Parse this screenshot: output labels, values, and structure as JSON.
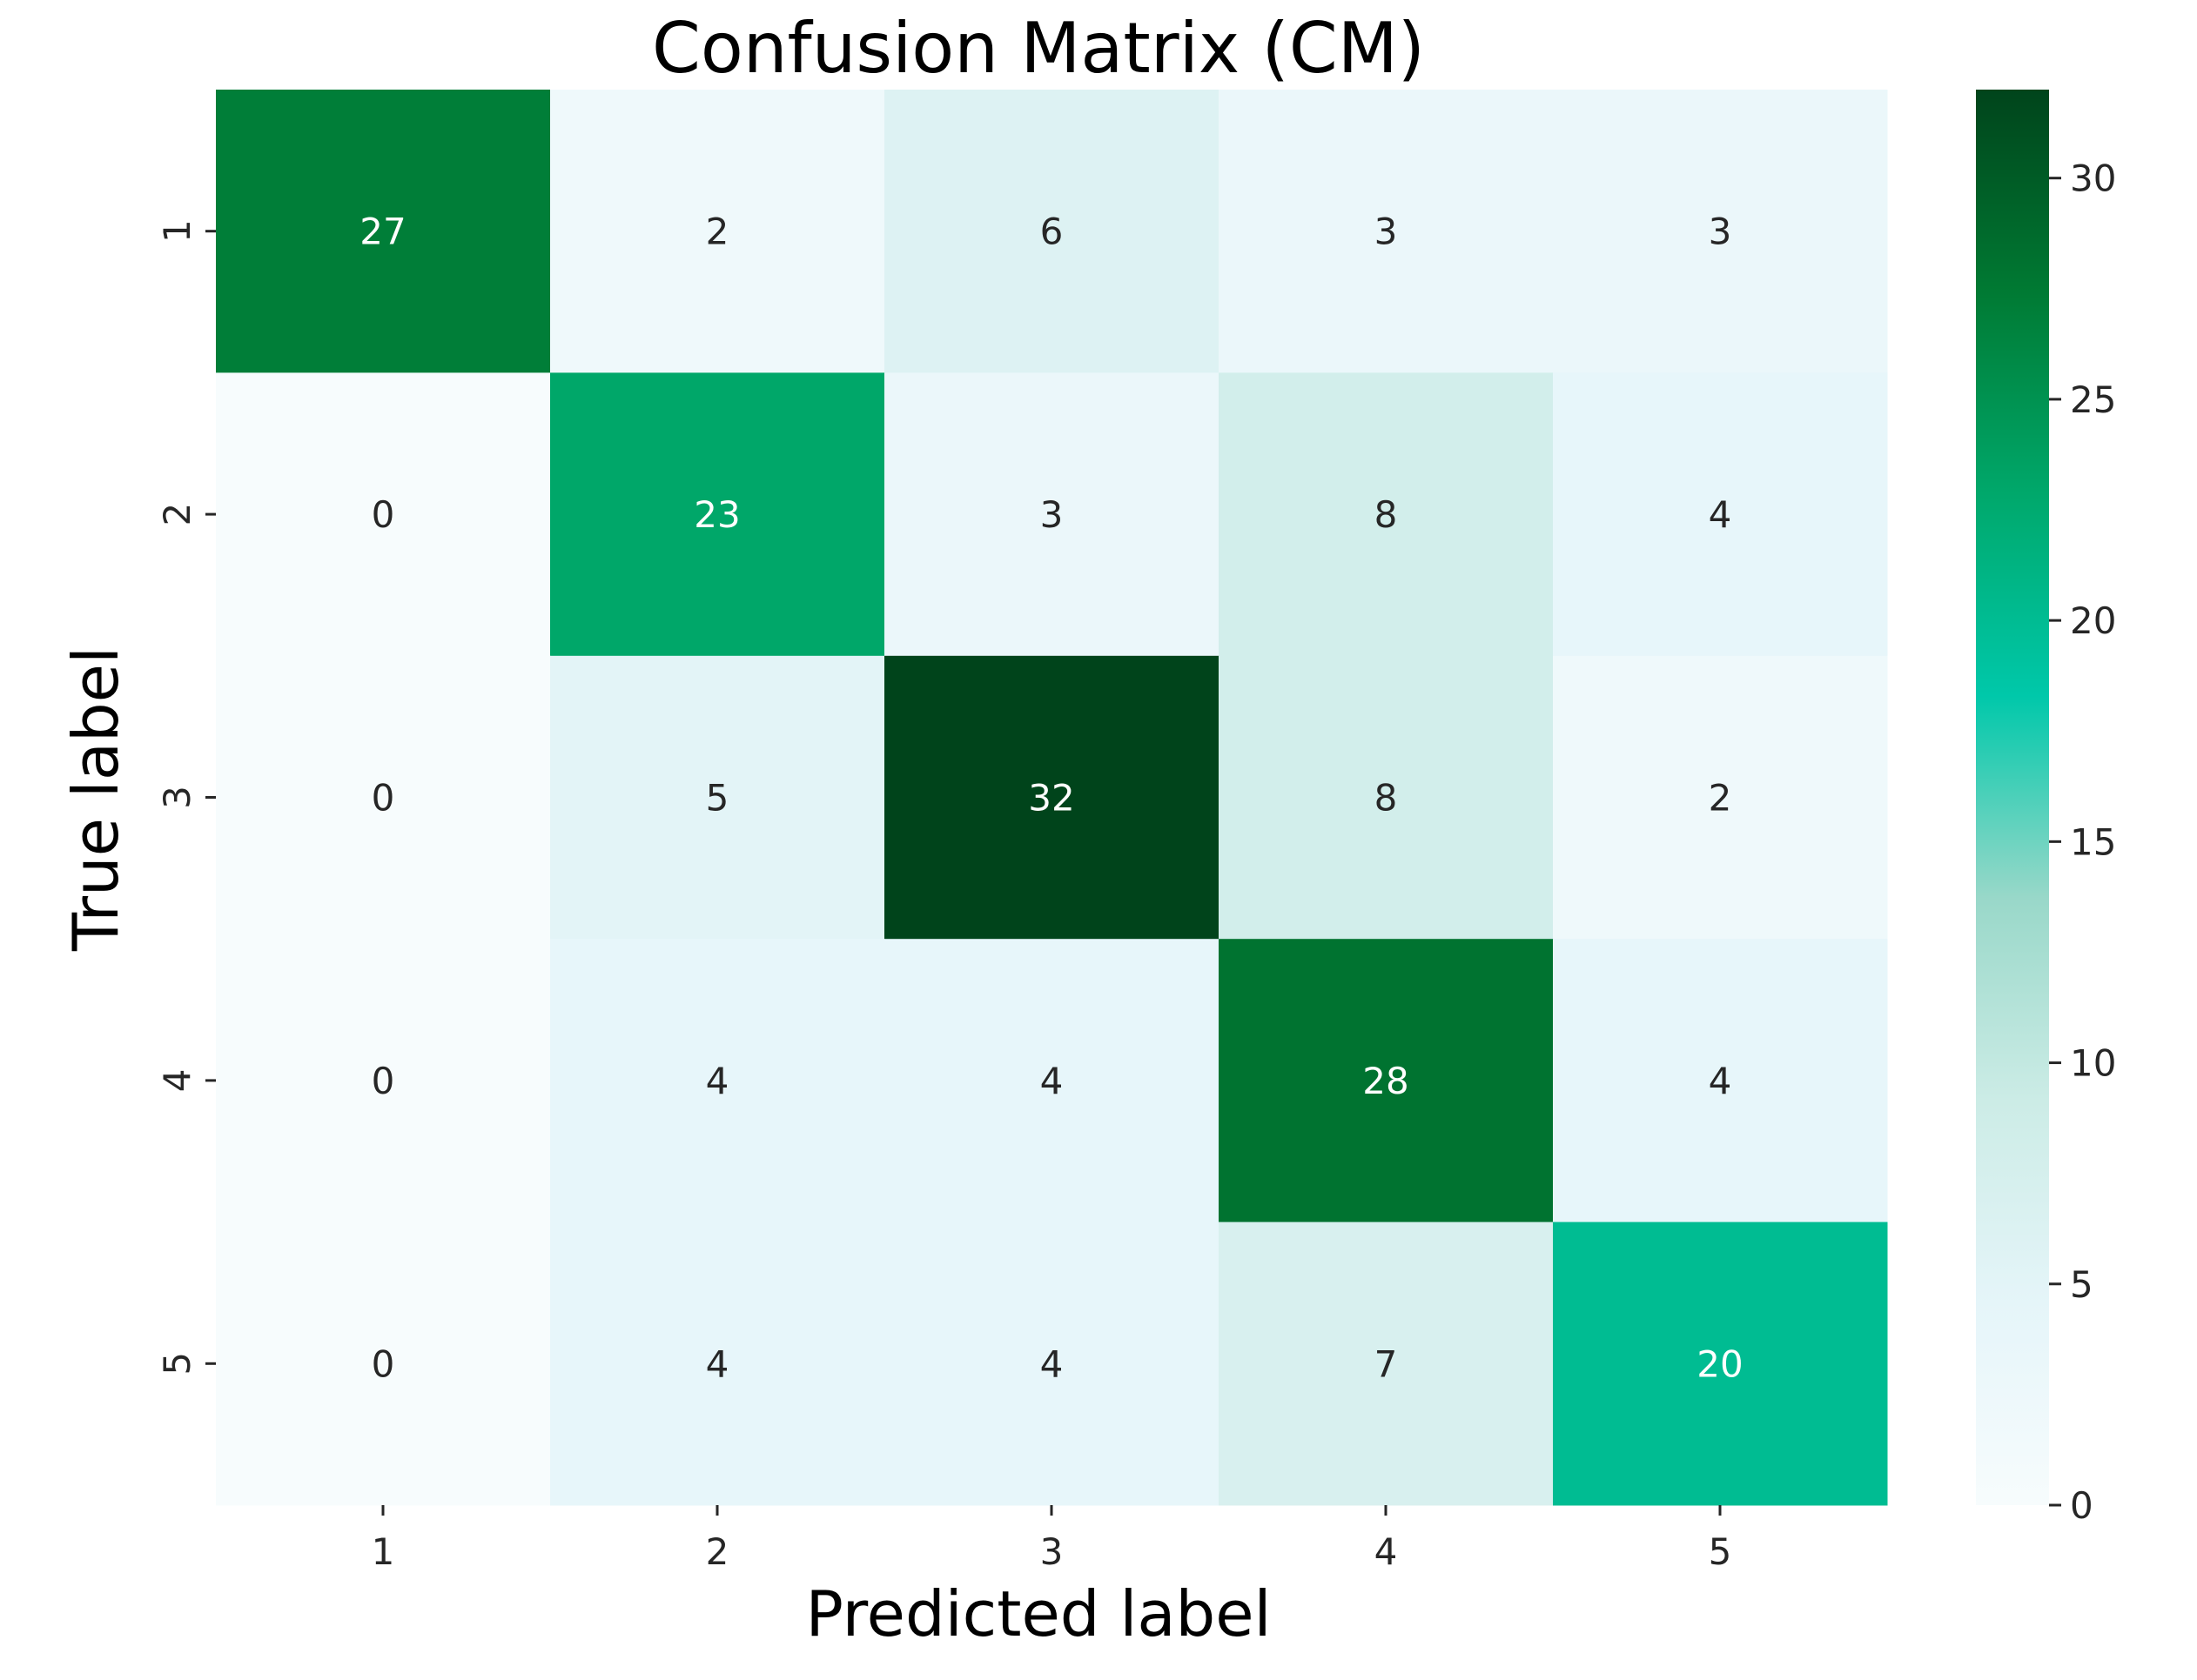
{
  "chart_data": {
    "type": "heatmap",
    "title": "Confusion Matrix (CM)",
    "xlabel": "Predicted label",
    "ylabel": "True label",
    "x_categories": [
      "1",
      "2",
      "3",
      "4",
      "5"
    ],
    "y_categories": [
      "1",
      "2",
      "3",
      "4",
      "5"
    ],
    "values": [
      [
        27,
        2,
        6,
        3,
        3
      ],
      [
        0,
        23,
        3,
        8,
        4
      ],
      [
        0,
        5,
        32,
        8,
        2
      ],
      [
        0,
        4,
        4,
        28,
        4
      ],
      [
        0,
        4,
        4,
        7,
        20
      ]
    ],
    "colorbar": {
      "range": [
        0,
        32
      ],
      "ticks": [
        "0",
        "5",
        "10",
        "15",
        "20",
        "25",
        "30"
      ],
      "colormap": "BuGn",
      "colors": [
        "#f7fcfd",
        "#e5f5f9",
        "#ccece6",
        "#99d8c9",
        "#00c8aa",
        "#00a86b",
        "#007a33",
        "#00441b"
      ]
    },
    "annotation_light_text_color": "#ffffff",
    "annotation_dark_text_color": "#262626"
  }
}
